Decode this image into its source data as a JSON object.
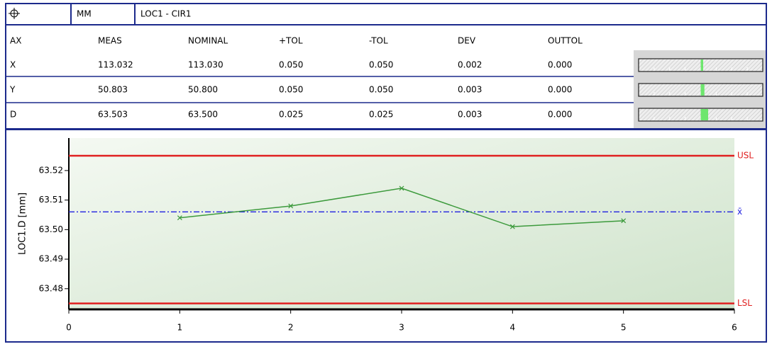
{
  "table": {
    "header": {
      "units": "MM",
      "feature": "LOC1 - CIR1"
    },
    "columns": [
      "AX",
      "MEAS",
      "NOMINAL",
      "+TOL",
      "-TOL",
      "DEV",
      "OUTTOL"
    ],
    "rows": [
      [
        "X",
        "113.032",
        "113.030",
        "0.050",
        "0.050",
        "0.002",
        "0.000"
      ],
      [
        "Y",
        "50.803",
        "50.800",
        "0.050",
        "0.050",
        "0.003",
        "0.000"
      ],
      [
        "D",
        "63.503",
        "63.500",
        "0.025",
        "0.025",
        "0.003",
        "0.000"
      ]
    ]
  },
  "chart_data": {
    "type": "line",
    "ylabel": "LOC1.D [mm]",
    "x": [
      1,
      2,
      3,
      4,
      5
    ],
    "values": [
      63.504,
      63.508,
      63.514,
      63.501,
      63.503
    ],
    "color": "#3c9a3c",
    "xlim": [
      0,
      6
    ],
    "xticks": [
      0,
      1,
      2,
      3,
      4,
      5,
      6
    ],
    "ylim": [
      63.473,
      63.531
    ],
    "yticks": [
      63.48,
      63.49,
      {
        "value": 63.5,
        "label": "63.50"
      },
      63.51,
      63.52
    ],
    "usl": {
      "value": 63.525,
      "label": "USL",
      "color": "#e02020"
    },
    "lsl": {
      "value": 63.475,
      "label": "LSL",
      "color": "#e02020"
    },
    "mean": {
      "value": 63.506,
      "label": "x̄",
      "color": "#2020e0"
    }
  }
}
